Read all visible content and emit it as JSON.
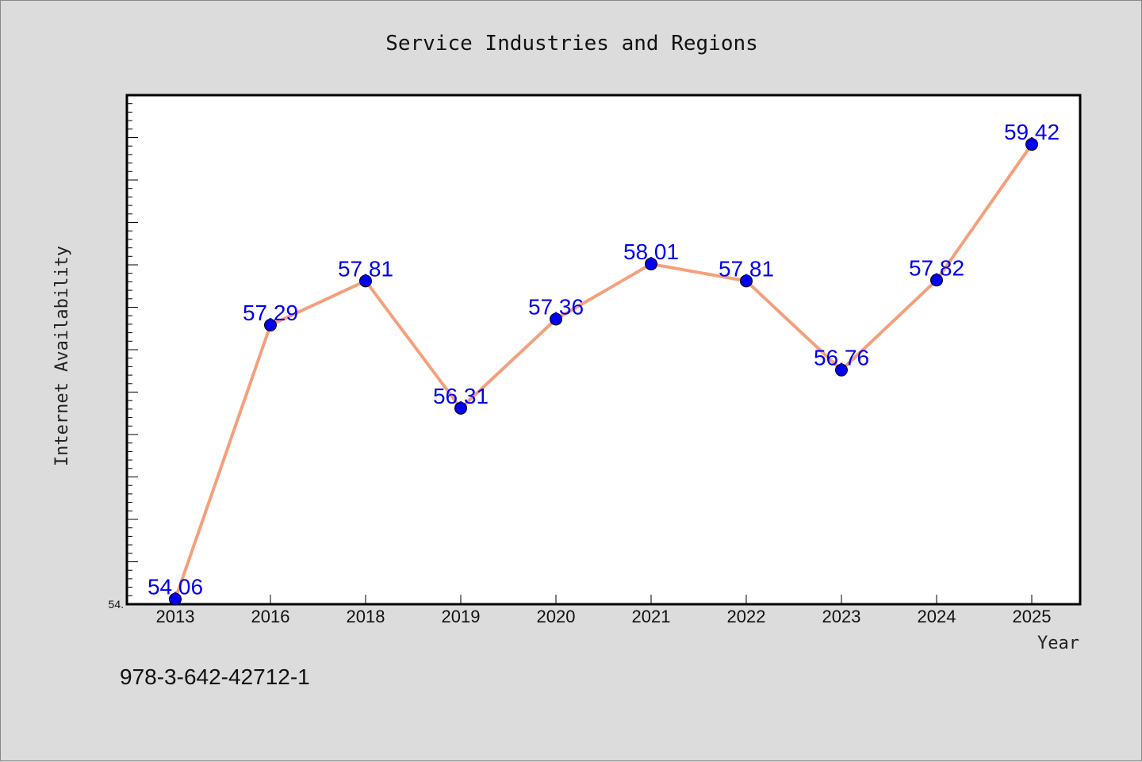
{
  "chart_data": {
    "type": "line",
    "title": "Service Industries and Regions",
    "xlabel": "Year",
    "ylabel": "Internet Availability",
    "categories": [
      "2013",
      "2016",
      "2018",
      "2019",
      "2020",
      "2021",
      "2022",
      "2023",
      "2024",
      "2025"
    ],
    "series": [
      {
        "values": [
          54.06,
          57.29,
          57.81,
          56.31,
          57.36,
          58.01,
          57.81,
          56.76,
          57.82,
          59.42
        ],
        "data_labels": [
          "54.06",
          "57.29",
          "57.81",
          "56.31",
          "57.36",
          "58.01",
          "57.81",
          "56.76",
          "57.82",
          "59.42"
        ]
      }
    ],
    "ylim": [
      54.0,
      60.0
    ],
    "y_tick_labels": [
      "54."
    ],
    "grid": false,
    "legend": "none",
    "line_color": "#f4a07c",
    "marker_color": "#0000ee",
    "label_color": "#0000ee"
  },
  "footnote": "978-3-642-42712-1"
}
